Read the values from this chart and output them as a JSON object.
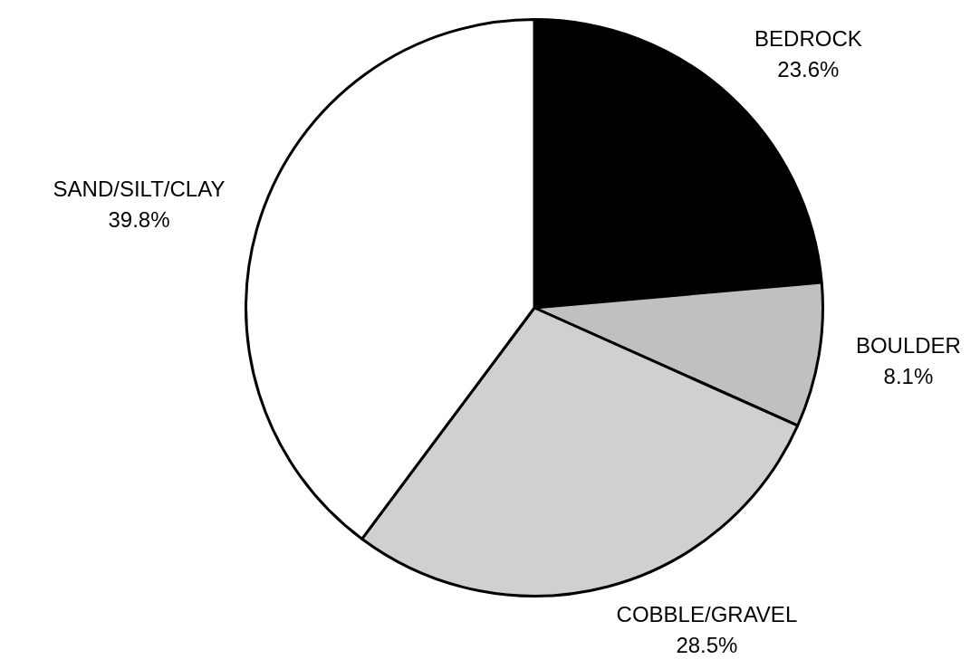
{
  "chart_data": {
    "type": "pie",
    "categories": [
      "BEDROCK",
      "BOULDER",
      "COBBLE/GRAVEL",
      "SAND/SILT/CLAY"
    ],
    "values": [
      23.6,
      8.1,
      28.5,
      39.8
    ],
    "value_labels": [
      "23.6%",
      "8.1%",
      "28.5%",
      "39.8%"
    ],
    "colors": [
      "#000000",
      "#c0c0c0",
      "#d0d0d0",
      "#ffffff"
    ],
    "legend": false
  }
}
